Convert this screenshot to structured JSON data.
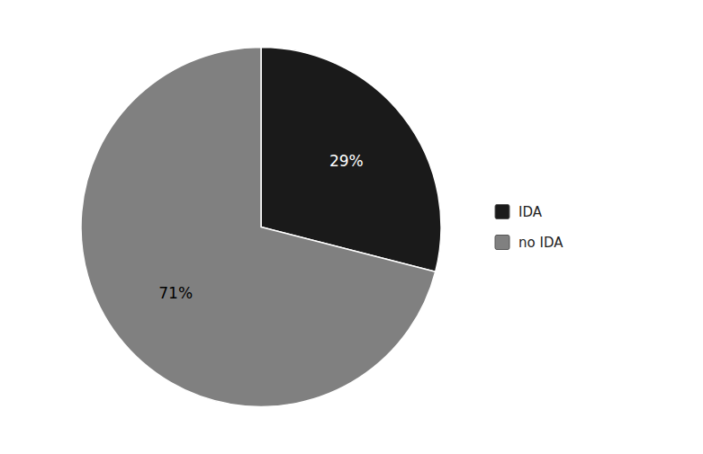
{
  "chart_data": {
    "type": "pie",
    "categories": [
      "IDA",
      "no IDA"
    ],
    "values": [
      29,
      71
    ],
    "value_labels": [
      "29%",
      "71%"
    ],
    "colors": [
      "#1a1a1a",
      "#808080"
    ],
    "data_labels": true,
    "legend": "right"
  }
}
